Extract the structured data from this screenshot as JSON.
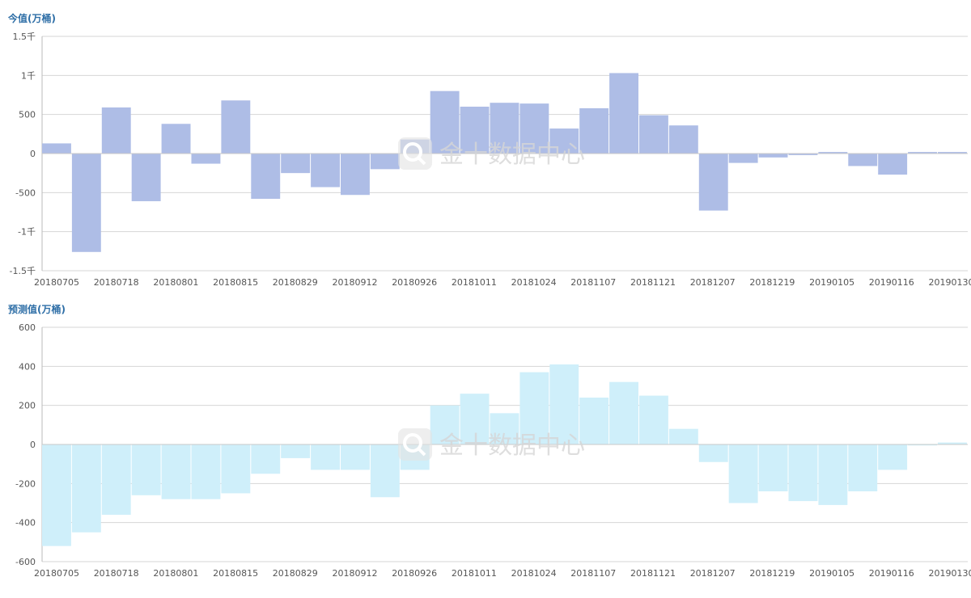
{
  "watermark": {
    "text": "金十数据中心",
    "icon": "magnifier-logo-icon"
  },
  "x_labels": [
    "20180705",
    "20180718",
    "20180801",
    "20180815",
    "20180829",
    "20180912",
    "20180926",
    "20181011",
    "20181024",
    "20181107",
    "20181121",
    "20181207",
    "20181219",
    "20190105",
    "20190116",
    "20190130"
  ],
  "chart_data": [
    {
      "type": "bar",
      "title": "今值(万桶)",
      "color": "#aebde6",
      "ylim": [
        -1500,
        1500
      ],
      "yticks": [
        {
          "value": 1500,
          "label": "1.5千"
        },
        {
          "value": 1000,
          "label": "1千"
        },
        {
          "value": 500,
          "label": "500"
        },
        {
          "value": 0,
          "label": "0"
        },
        {
          "value": -500,
          "label": "-500"
        },
        {
          "value": -1000,
          "label": "-1千"
        },
        {
          "value": -1500,
          "label": "-1.5千"
        }
      ],
      "values": [
        130,
        -1260,
        590,
        -610,
        380,
        -130,
        680,
        -580,
        -250,
        -430,
        -530,
        -200,
        180,
        800,
        600,
        650,
        640,
        320,
        580,
        1030,
        490,
        360,
        -730,
        -120,
        -50,
        -20,
        20,
        -160,
        -270,
        20,
        20
      ],
      "grid": true
    },
    {
      "type": "bar",
      "title": "预测值(万桶)",
      "color": "#cfeffa",
      "ylim": [
        -600,
        600
      ],
      "yticks": [
        {
          "value": 600,
          "label": "600"
        },
        {
          "value": 400,
          "label": "400"
        },
        {
          "value": 200,
          "label": "200"
        },
        {
          "value": 0,
          "label": "0"
        },
        {
          "value": -200,
          "label": "-200"
        },
        {
          "value": -400,
          "label": "-400"
        },
        {
          "value": -600,
          "label": "-600"
        }
      ],
      "values": [
        -520,
        -450,
        -360,
        -260,
        -280,
        -280,
        -250,
        -150,
        -70,
        -130,
        -130,
        -270,
        -130,
        200,
        260,
        160,
        370,
        410,
        240,
        320,
        250,
        80,
        -90,
        -300,
        -240,
        -290,
        -310,
        -240,
        -130,
        -5,
        10
      ],
      "grid": true
    }
  ]
}
